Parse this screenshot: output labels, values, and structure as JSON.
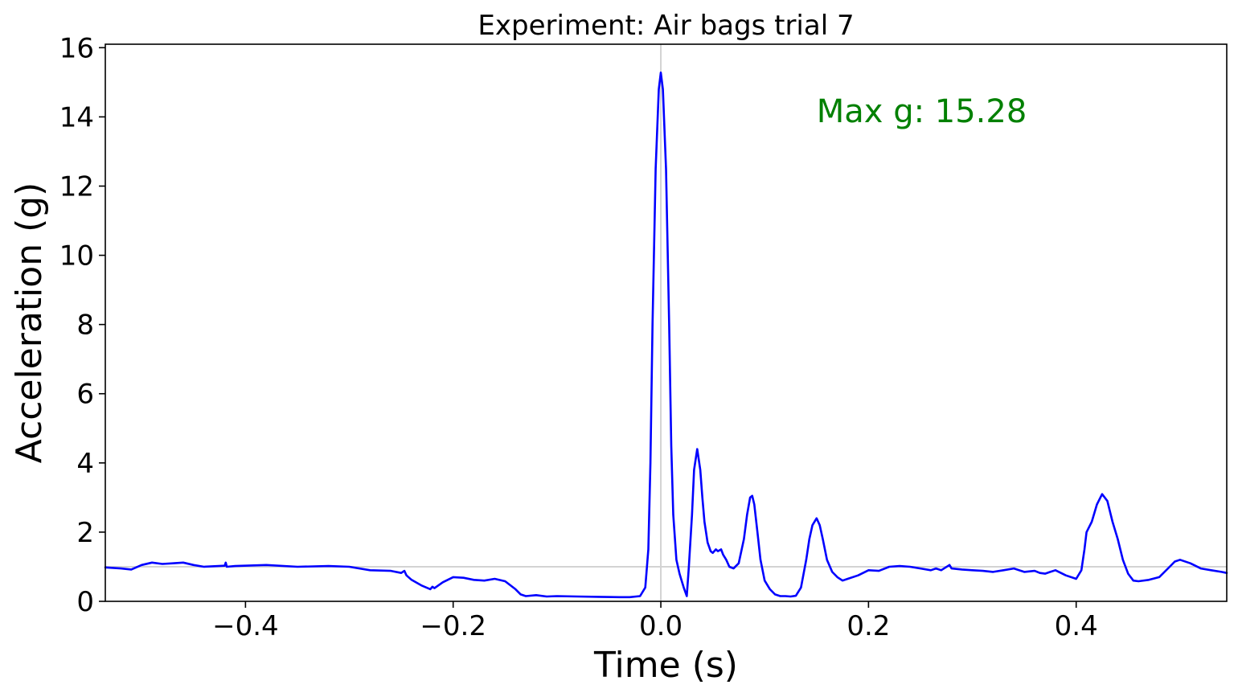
{
  "chart_data": {
    "type": "line",
    "title": "Experiment: Air bags trial 7",
    "xlabel": "Time (s)",
    "ylabel": "Acceleration (g)",
    "xlim": [
      -0.535,
      0.545
    ],
    "ylim": [
      0,
      16.1
    ],
    "xticks": [
      -0.4,
      -0.2,
      0.0,
      0.2,
      0.4
    ],
    "xtick_labels": [
      "−0.4",
      "−0.2",
      "0.0",
      "0.2",
      "0.4"
    ],
    "yticks": [
      0,
      2,
      4,
      6,
      8,
      10,
      12,
      14,
      16
    ],
    "ytick_labels": [
      "0",
      "2",
      "4",
      "6",
      "8",
      "10",
      "12",
      "14",
      "16"
    ],
    "grid": false,
    "reference_lines": {
      "horizontal_y": 1.0,
      "vertical_x": 0.0,
      "color": "#d3d3d3"
    },
    "annotation": {
      "text": "Max g: 15.28",
      "x": 0.15,
      "y": 13.85,
      "color": "#008000"
    },
    "series": [
      {
        "color": "#0000ff",
        "x": [
          -0.535,
          -0.52,
          -0.51,
          -0.5,
          -0.49,
          -0.48,
          -0.47,
          -0.46,
          -0.45,
          -0.44,
          -0.42,
          -0.419,
          -0.418,
          -0.41,
          -0.38,
          -0.35,
          -0.32,
          -0.3,
          -0.28,
          -0.26,
          -0.25,
          -0.247,
          -0.245,
          -0.24,
          -0.23,
          -0.222,
          -0.22,
          -0.218,
          -0.21,
          -0.2,
          -0.19,
          -0.18,
          -0.17,
          -0.16,
          -0.15,
          -0.14,
          -0.135,
          -0.13,
          -0.12,
          -0.11,
          -0.1,
          -0.08,
          -0.06,
          -0.04,
          -0.03,
          -0.02,
          -0.015,
          -0.012,
          -0.01,
          -0.008,
          -0.005,
          -0.002,
          0.0,
          0.002,
          0.005,
          0.008,
          0.01,
          0.012,
          0.015,
          0.018,
          0.02,
          0.022,
          0.025,
          0.027,
          0.03,
          0.032,
          0.035,
          0.038,
          0.04,
          0.042,
          0.045,
          0.048,
          0.05,
          0.053,
          0.055,
          0.058,
          0.06,
          0.063,
          0.066,
          0.07,
          0.075,
          0.08,
          0.083,
          0.086,
          0.088,
          0.09,
          0.093,
          0.096,
          0.1,
          0.105,
          0.11,
          0.115,
          0.12,
          0.125,
          0.13,
          0.135,
          0.14,
          0.143,
          0.146,
          0.15,
          0.153,
          0.156,
          0.16,
          0.165,
          0.17,
          0.175,
          0.18,
          0.19,
          0.2,
          0.21,
          0.22,
          0.23,
          0.24,
          0.25,
          0.26,
          0.265,
          0.27,
          0.278,
          0.28,
          0.29,
          0.3,
          0.31,
          0.32,
          0.33,
          0.34,
          0.35,
          0.36,
          0.365,
          0.37,
          0.375,
          0.38,
          0.39,
          0.4,
          0.405,
          0.408,
          0.41,
          0.415,
          0.42,
          0.425,
          0.43,
          0.435,
          0.44,
          0.445,
          0.45,
          0.455,
          0.46,
          0.47,
          0.48,
          0.49,
          0.495,
          0.5,
          0.51,
          0.52,
          0.53,
          0.54,
          0.545
        ],
        "y": [
          0.98,
          0.95,
          0.92,
          1.05,
          1.12,
          1.08,
          1.1,
          1.12,
          1.05,
          1.0,
          1.03,
          1.12,
          1.0,
          1.02,
          1.05,
          1.0,
          1.02,
          1.0,
          0.9,
          0.88,
          0.82,
          0.88,
          0.75,
          0.62,
          0.45,
          0.35,
          0.42,
          0.38,
          0.55,
          0.7,
          0.68,
          0.62,
          0.6,
          0.65,
          0.58,
          0.35,
          0.2,
          0.15,
          0.18,
          0.14,
          0.15,
          0.14,
          0.13,
          0.12,
          0.12,
          0.15,
          0.4,
          1.5,
          4.0,
          8.0,
          12.5,
          14.8,
          15.28,
          14.8,
          12.5,
          8.0,
          4.5,
          2.5,
          1.2,
          0.8,
          0.6,
          0.4,
          0.15,
          1.0,
          2.5,
          3.8,
          4.4,
          3.8,
          3.0,
          2.3,
          1.7,
          1.45,
          1.4,
          1.5,
          1.45,
          1.5,
          1.35,
          1.2,
          1.0,
          0.95,
          1.1,
          1.8,
          2.5,
          3.0,
          3.05,
          2.8,
          2.0,
          1.2,
          0.6,
          0.35,
          0.2,
          0.15,
          0.15,
          0.14,
          0.16,
          0.4,
          1.2,
          1.8,
          2.2,
          2.4,
          2.2,
          1.8,
          1.2,
          0.85,
          0.7,
          0.6,
          0.65,
          0.75,
          0.9,
          0.88,
          1.0,
          1.02,
          1.0,
          0.95,
          0.9,
          0.95,
          0.9,
          1.05,
          0.95,
          0.92,
          0.9,
          0.88,
          0.85,
          0.9,
          0.95,
          0.85,
          0.88,
          0.82,
          0.8,
          0.85,
          0.9,
          0.75,
          0.65,
          0.9,
          1.5,
          2.0,
          2.3,
          2.8,
          3.1,
          2.9,
          2.3,
          1.8,
          1.2,
          0.8,
          0.6,
          0.58,
          0.62,
          0.7,
          1.0,
          1.15,
          1.2,
          1.1,
          0.95,
          0.9,
          0.85,
          0.82
        ]
      }
    ]
  }
}
